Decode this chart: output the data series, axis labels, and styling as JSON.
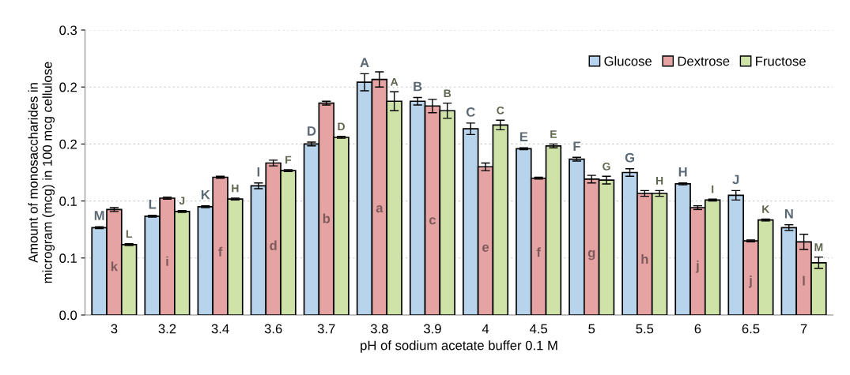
{
  "chart_data": {
    "type": "bar",
    "xlabel": "pH of sodium acetate buffer 0.1 M",
    "ylabel": "Amount of monosaccharides in\nmicrogram (mcg) in 100 mcg cellulose",
    "categories": [
      "3",
      "3.2",
      "3.4",
      "3.6",
      "3.7",
      "3.8",
      "3.9",
      "4",
      "4.5",
      "5",
      "5.5",
      "6",
      "6.5",
      "7"
    ],
    "series": [
      {
        "name": "Glucose",
        "color": "#b8d4ec",
        "values": [
          0.092,
          0.104,
          0.114,
          0.136,
          0.18,
          0.245,
          0.225,
          0.196,
          0.175,
          0.164,
          0.15,
          0.138,
          0.126,
          0.092
        ],
        "errors": [
          0.001,
          0.001,
          0.001,
          0.003,
          0.002,
          0.009,
          0.004,
          0.006,
          0.001,
          0.002,
          0.004,
          0.001,
          0.005,
          0.003
        ],
        "value_labels": [
          "M",
          "L",
          "K",
          "I",
          "D",
          "A",
          "B",
          "C",
          "E",
          "F",
          "G",
          "H",
          "J",
          "N"
        ]
      },
      {
        "name": "Dextrose",
        "color": "#e6a3a3",
        "values": [
          0.111,
          0.123,
          0.145,
          0.16,
          0.223,
          0.248,
          0.22,
          0.156,
          0.144,
          0.143,
          0.128,
          0.113,
          0.078,
          0.077
        ],
        "errors": [
          0.002,
          0.001,
          0.001,
          0.003,
          0.002,
          0.008,
          0.007,
          0.004,
          0.001,
          0.004,
          0.003,
          0.002,
          0.001,
          0.008
        ],
        "value_labels": [
          "k",
          "i",
          "f",
          "d",
          "b",
          "a",
          "c",
          "e",
          "f",
          "g",
          "h",
          "j",
          "j",
          "l"
        ]
      },
      {
        "name": "Fructose",
        "color": "#cfe3a8",
        "values": [
          0.074,
          0.109,
          0.122,
          0.152,
          0.187,
          0.225,
          0.215,
          0.2,
          0.178,
          0.142,
          0.128,
          0.121,
          0.1,
          0.055
        ],
        "errors": [
          0.001,
          0.001,
          0.001,
          0.001,
          0.001,
          0.01,
          0.008,
          0.005,
          0.002,
          0.004,
          0.003,
          0.001,
          0.001,
          0.006
        ],
        "value_labels": [
          "L",
          "J",
          "H",
          "F",
          "D",
          "A",
          "B",
          "C",
          "E",
          "G",
          "H",
          "I",
          "K",
          "M"
        ]
      }
    ],
    "ylim": [
      0,
      0.3
    ],
    "yticks": [
      {
        "value": 0,
        "label": "0.0"
      },
      {
        "value": 0.06,
        "label": "0.1"
      },
      {
        "value": 0.12,
        "label": "0.1"
      },
      {
        "value": 0.18,
        "label": "0.2"
      },
      {
        "value": 0.24,
        "label": "0.2"
      },
      {
        "value": 0.3,
        "label": "0.3"
      }
    ],
    "grid": "y",
    "legend": "top right"
  }
}
